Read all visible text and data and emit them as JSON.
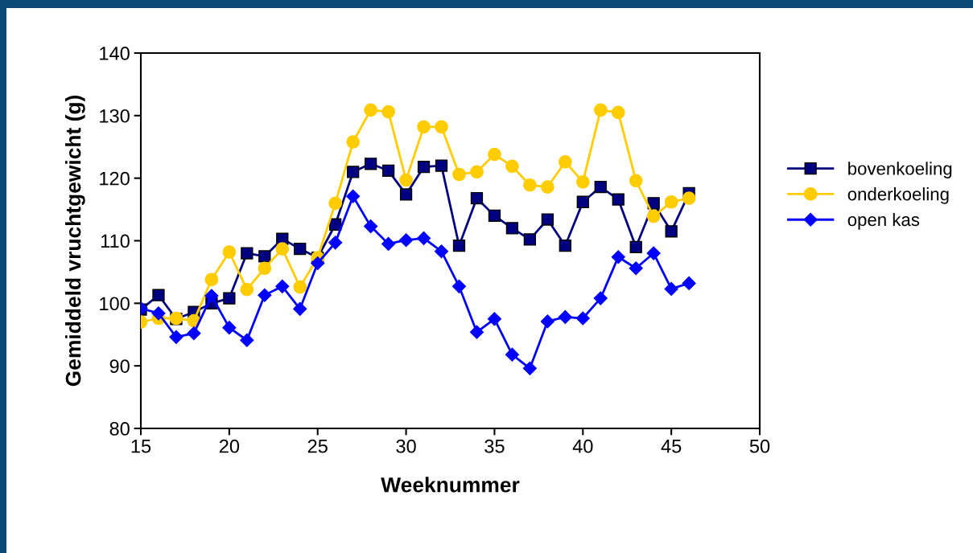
{
  "chart_data": {
    "type": "line",
    "xlabel": "Weeknummer",
    "ylabel": "Gemiddeld vruchtgewicht (g)",
    "x": [
      15,
      16,
      17,
      18,
      19,
      20,
      21,
      22,
      23,
      24,
      25,
      26,
      27,
      28,
      29,
      30,
      31,
      32,
      33,
      34,
      35,
      36,
      37,
      38,
      39,
      40,
      41,
      42,
      43,
      44,
      45,
      46
    ],
    "series": [
      {
        "name": "bovenkoeling",
        "color": "#000080",
        "marker": "square",
        "values": [
          99,
          101.3,
          97.5,
          98.6,
          100,
          100.8,
          108,
          107.5,
          110.3,
          108.7,
          107.3,
          112.6,
          121,
          122.3,
          121.2,
          117.4,
          121.8,
          122,
          109.2,
          116.8,
          114,
          112,
          110.2,
          113.4,
          109.2,
          116.2,
          118.6,
          116.6,
          109,
          116,
          111.5,
          117.6
        ]
      },
      {
        "name": "onderkoeling",
        "color": "#ffcc00",
        "marker": "circle",
        "values": [
          97,
          97.6,
          97.6,
          97.2,
          103.8,
          108.2,
          102.2,
          105.6,
          108.7,
          102.6,
          107.3,
          116,
          125.8,
          130.9,
          130.6,
          119.7,
          128.2,
          128.2,
          120.6,
          121,
          123.8,
          121.9,
          118.9,
          118.6,
          122.6,
          119.4,
          130.9,
          130.5,
          119.6,
          113.9,
          116.2,
          116.8
        ]
      },
      {
        "name": "open kas",
        "color": "#0000ff",
        "marker": "diamond",
        "values": [
          99.2,
          98.4,
          94.6,
          95.2,
          101.2,
          96.1,
          94.1,
          101.3,
          102.7,
          99.1,
          106.4,
          109.7,
          117.1,
          112.3,
          109.5,
          110.1,
          110.4,
          108.3,
          102.7,
          95.4,
          97.5,
          91.8,
          89.6,
          97.1,
          97.8,
          97.6,
          100.8,
          107.4,
          105.6,
          108,
          102.3,
          103.2
        ]
      }
    ],
    "xlim": [
      15,
      50
    ],
    "xticks": [
      15,
      20,
      25,
      30,
      35,
      40,
      45,
      50
    ],
    "ylim": [
      80,
      140
    ],
    "yticks": [
      80,
      90,
      100,
      110,
      120,
      130,
      140
    ],
    "grid": false,
    "legend": "right"
  }
}
